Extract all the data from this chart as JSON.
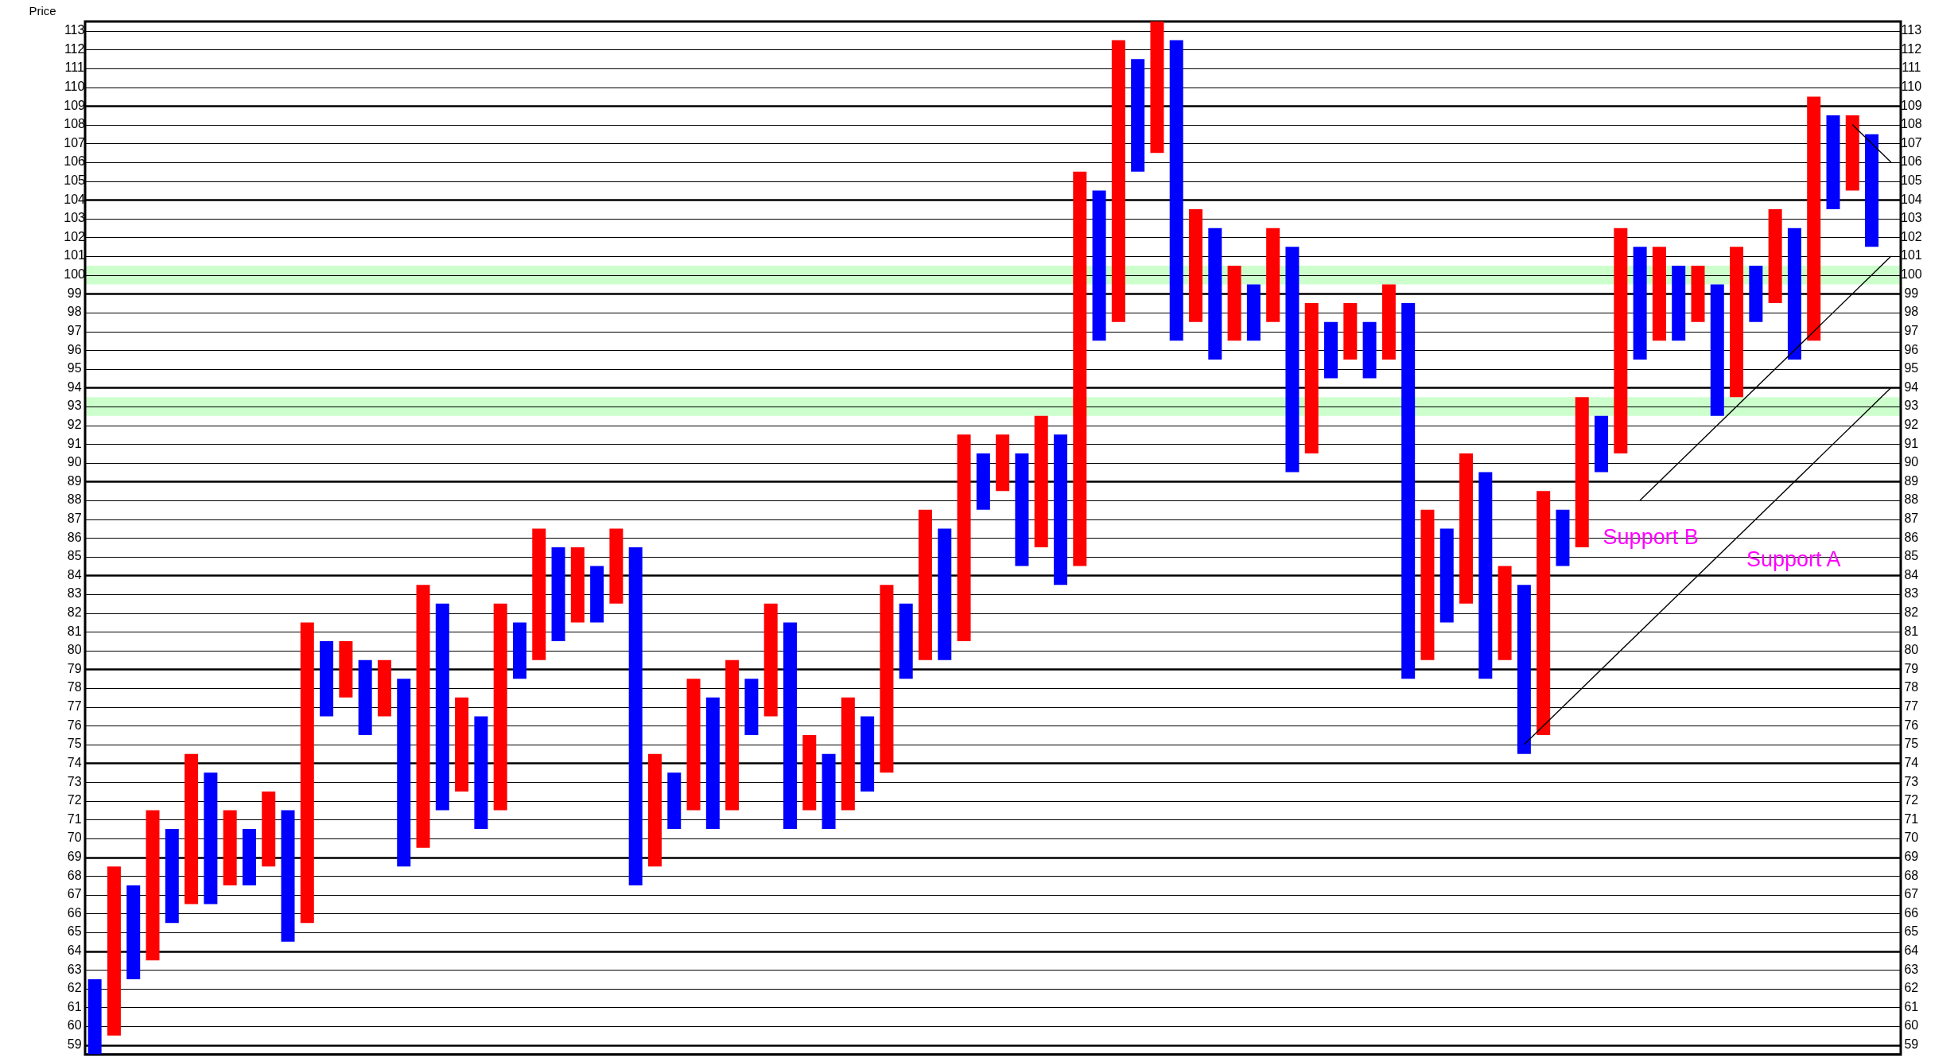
{
  "chart_data": {
    "type": "bar",
    "ylabel": "Price",
    "categories": [
      null,
      null,
      null,
      null,
      null,
      null,
      null,
      null,
      null,
      null,
      null,
      null,
      null,
      null,
      null,
      null,
      null,
      null,
      null,
      null,
      null,
      null,
      null,
      null,
      null,
      null,
      null,
      null,
      null,
      null,
      null,
      null,
      null,
      null,
      null,
      null,
      null,
      null,
      null,
      null,
      null,
      null,
      null,
      null,
      null,
      null,
      null,
      null,
      null,
      null,
      null,
      null,
      null,
      null,
      null,
      null,
      null,
      null,
      null,
      null,
      null,
      null,
      null,
      null,
      null,
      null,
      null,
      null,
      null,
      null,
      null,
      null,
      null,
      null,
      null,
      null,
      null,
      null,
      null,
      null,
      null,
      null,
      null,
      null,
      null,
      null,
      null,
      null,
      null,
      null,
      null,
      null,
      null,
      null
    ],
    "ylim": [
      58.5,
      113.5
    ],
    "yticks": [
      59,
      60,
      61,
      62,
      63,
      64,
      65,
      66,
      67,
      68,
      69,
      70,
      71,
      72,
      73,
      74,
      75,
      76,
      77,
      78,
      79,
      80,
      81,
      82,
      83,
      84,
      85,
      86,
      87,
      88,
      89,
      90,
      91,
      92,
      93,
      94,
      95,
      96,
      97,
      98,
      99,
      100,
      101,
      102,
      103,
      104,
      105,
      106,
      107,
      108,
      109,
      110,
      111,
      112,
      113
    ],
    "y2lim": [
      58.5,
      113.5
    ],
    "y2ticks": [
      59,
      60,
      61,
      62,
      63,
      64,
      65,
      66,
      67,
      68,
      69,
      70,
      71,
      72,
      73,
      74,
      75,
      76,
      77,
      78,
      79,
      80,
      81,
      82,
      83,
      84,
      85,
      86,
      87,
      88,
      89,
      90,
      91,
      92,
      93,
      94,
      95,
      96,
      97,
      98,
      99,
      100,
      101,
      102,
      103,
      104,
      105,
      106,
      107,
      108,
      109,
      110,
      111,
      112,
      113
    ],
    "tick_labels": "y",
    "grid": "y",
    "legend": false,
    "bands": [
      {
        "axis": "y",
        "from": 99.5,
        "to": 100.5,
        "color": "#ccffcc"
      },
      {
        "axis": "y",
        "from": 92.5,
        "to": 93.5,
        "color": "#ccffcc"
      }
    ],
    "annotations": [
      "Support B",
      "Support A"
    ],
    "series": [
      {
        "color": "#0000ff",
        "values": [
          4,
          null,
          5,
          null,
          5,
          null,
          7,
          null,
          3,
          null,
          7,
          null,
          4,
          null,
          4,
          null,
          10,
          null,
          11,
          null,
          6,
          null,
          3,
          null,
          5,
          null,
          3,
          null,
          18,
          null,
          3,
          null,
          7,
          null,
          3,
          null,
          11,
          null,
          4,
          null,
          4,
          null,
          4,
          null,
          7,
          null,
          3,
          null,
          6,
          null,
          8,
          null,
          8,
          null,
          6,
          null,
          16,
          null,
          7,
          null,
          3,
          null,
          12,
          null,
          3,
          null,
          3,
          null,
          20,
          null,
          5,
          null,
          11,
          null,
          9,
          null,
          3,
          null,
          3,
          null,
          6,
          null,
          4,
          null,
          7,
          null,
          3,
          null,
          7,
          null,
          5,
          null,
          6,
          null
        ],
        "base": [
          58.5,
          null,
          62.5,
          null,
          65.5,
          null,
          66.5,
          null,
          67.5,
          null,
          64.5,
          null,
          76.5,
          null,
          75.5,
          null,
          68.5,
          null,
          71.5,
          null,
          70.5,
          null,
          78.5,
          null,
          80.5,
          null,
          81.5,
          null,
          67.5,
          null,
          70.5,
          null,
          70.5,
          null,
          75.5,
          null,
          70.5,
          null,
          70.5,
          null,
          72.5,
          null,
          78.5,
          null,
          79.5,
          null,
          87.5,
          null,
          84.5,
          null,
          83.5,
          null,
          96.5,
          null,
          105.5,
          null,
          96.5,
          null,
          95.5,
          null,
          96.5,
          null,
          89.5,
          null,
          94.5,
          null,
          94.5,
          null,
          78.5,
          null,
          81.5,
          null,
          78.5,
          null,
          74.5,
          null,
          84.5,
          null,
          89.5,
          null,
          95.5,
          null,
          96.5,
          null,
          92.5,
          null,
          97.5,
          null,
          95.5,
          null,
          103.5,
          null,
          101.5,
          null
        ]
      },
      {
        "color": "#ff0000",
        "values": [
          null,
          9,
          null,
          8,
          null,
          8,
          null,
          4,
          null,
          4,
          null,
          16,
          null,
          3,
          null,
          3,
          null,
          14,
          null,
          5,
          null,
          11,
          null,
          7,
          null,
          4,
          null,
          4,
          null,
          6,
          null,
          7,
          null,
          8,
          null,
          6,
          null,
          4,
          null,
          6,
          null,
          10,
          null,
          8,
          null,
          11,
          null,
          3,
          null,
          7,
          null,
          21,
          null,
          15,
          null,
          7,
          null,
          6,
          null,
          4,
          null,
          5,
          null,
          8,
          null,
          3,
          null,
          4,
          null,
          8,
          null,
          8,
          null,
          5,
          null,
          13,
          null,
          8,
          null,
          12,
          null,
          5,
          null,
          3,
          null,
          8,
          null,
          5,
          null,
          13,
          null,
          4,
          null,
          null
        ],
        "base": [
          null,
          59.5,
          null,
          63.5,
          null,
          66.5,
          null,
          67.5,
          null,
          68.5,
          null,
          65.5,
          null,
          77.5,
          null,
          76.5,
          null,
          69.5,
          null,
          72.5,
          null,
          71.5,
          null,
          79.5,
          null,
          81.5,
          null,
          82.5,
          null,
          68.5,
          null,
          71.5,
          null,
          71.5,
          null,
          76.5,
          null,
          71.5,
          null,
          71.5,
          null,
          73.5,
          null,
          79.5,
          null,
          80.5,
          null,
          88.5,
          null,
          85.5,
          null,
          84.5,
          null,
          97.5,
          null,
          106.5,
          null,
          97.5,
          null,
          96.5,
          null,
          97.5,
          null,
          90.5,
          null,
          95.5,
          null,
          95.5,
          null,
          79.5,
          null,
          82.5,
          null,
          79.5,
          null,
          75.5,
          null,
          85.5,
          null,
          90.5,
          null,
          96.5,
          null,
          97.5,
          null,
          93.5,
          null,
          98.5,
          null,
          96.5,
          null,
          104.5,
          null,
          null
        ]
      },
      {
        "type": "line",
        "color": "#000000",
        "values": [
          null,
          null,
          null,
          null,
          null,
          null,
          null,
          null,
          null,
          null,
          null,
          null,
          null,
          null,
          null,
          null,
          null,
          null,
          null,
          null,
          null,
          null,
          null,
          null,
          null,
          null,
          null,
          null,
          null,
          null,
          null,
          null,
          null,
          null,
          null,
          null,
          null,
          null,
          null,
          null,
          null,
          null,
          null,
          null,
          null,
          null,
          null,
          null,
          null,
          null,
          null,
          null,
          null,
          null,
          null,
          null,
          null,
          null,
          null,
          null,
          null,
          null,
          null,
          null,
          null,
          null,
          null,
          null,
          null,
          null,
          null,
          null,
          null,
          null,
          null,
          null,
          null,
          null,
          null,
          null,
          88,
          null,
          null,
          null,
          null,
          null,
          null,
          null,
          null,
          null,
          null,
          null,
          null,
          101
        ]
      },
      {
        "type": "line",
        "color": "#000000",
        "values": [
          null,
          null,
          null,
          null,
          null,
          null,
          null,
          null,
          null,
          null,
          null,
          null,
          null,
          null,
          null,
          null,
          null,
          null,
          null,
          null,
          null,
          null,
          null,
          null,
          null,
          null,
          null,
          null,
          null,
          null,
          null,
          null,
          null,
          null,
          null,
          null,
          null,
          null,
          null,
          null,
          null,
          null,
          null,
          null,
          null,
          null,
          null,
          null,
          null,
          null,
          null,
          null,
          null,
          null,
          null,
          null,
          null,
          null,
          null,
          null,
          null,
          null,
          null,
          null,
          null,
          null,
          null,
          null,
          null,
          null,
          null,
          null,
          null,
          null,
          75,
          null,
          null,
          null,
          null,
          null,
          null,
          null,
          null,
          null,
          null,
          null,
          null,
          null,
          null,
          null,
          null,
          null,
          null,
          94
        ]
      },
      {
        "type": "line",
        "color": "#000000",
        "values": [
          null,
          null,
          null,
          null,
          null,
          null,
          null,
          null,
          null,
          null,
          null,
          null,
          null,
          null,
          null,
          null,
          null,
          null,
          null,
          null,
          null,
          null,
          null,
          null,
          null,
          null,
          null,
          null,
          null,
          null,
          null,
          null,
          null,
          null,
          null,
          null,
          null,
          null,
          null,
          null,
          null,
          null,
          null,
          null,
          null,
          null,
          null,
          null,
          null,
          null,
          null,
          null,
          null,
          null,
          null,
          null,
          null,
          null,
          null,
          null,
          null,
          null,
          null,
          null,
          null,
          null,
          null,
          null,
          null,
          null,
          null,
          null,
          null,
          null,
          null,
          null,
          null,
          null,
          null,
          null,
          null,
          null,
          null,
          null,
          null,
          null,
          null,
          null,
          null,
          null,
          null,
          108,
          null,
          106
        ]
      }
    ]
  }
}
